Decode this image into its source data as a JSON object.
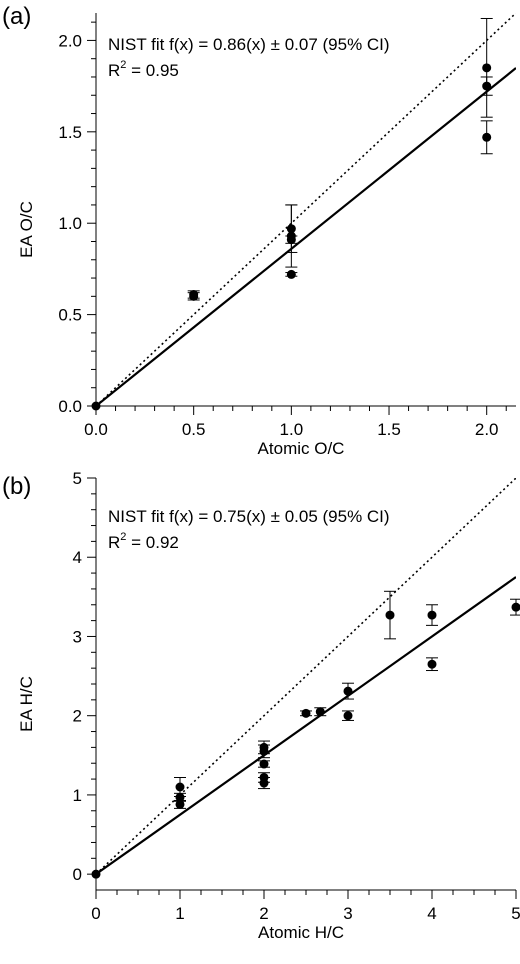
{
  "chart_data": [
    {
      "panel_label": "(a)",
      "type": "scatter",
      "xlabel": "Atomic O/C",
      "ylabel": "EA O/C",
      "xlim": [
        0,
        2.15
      ],
      "ylim": [
        0,
        2.15
      ],
      "x_ticks": [
        "0.0",
        "0.5",
        "1.0",
        "1.5",
        "2.0"
      ],
      "y_ticks": [
        "0.0",
        "0.5",
        "1.0",
        "1.5",
        "2.0"
      ],
      "annotation_fit": "NIST fit f(x) = 0.86(x) ± 0.07 (95% CI)",
      "annotation_r2_prefix": "R",
      "annotation_r2_exp": "2",
      "annotation_r2_suffix": " = 0.95",
      "fit_slope": 0.86,
      "identity_line": true,
      "points": [
        {
          "x": 0.0,
          "y": 0.0,
          "err": 0.0
        },
        {
          "x": 0.5,
          "y": 0.61,
          "err": 0.02
        },
        {
          "x": 0.5,
          "y": 0.6,
          "err": 0.02
        },
        {
          "x": 1.0,
          "y": 0.97,
          "err": 0.13
        },
        {
          "x": 1.0,
          "y": 0.93,
          "err": 0.17
        },
        {
          "x": 1.0,
          "y": 0.91,
          "err": 0.02
        },
        {
          "x": 1.0,
          "y": 0.72,
          "err": 0.01
        },
        {
          "x": 2.0,
          "y": 1.85,
          "err": 0.27
        },
        {
          "x": 2.0,
          "y": 1.75,
          "err": 0.05
        },
        {
          "x": 2.0,
          "y": 1.47,
          "err": 0.09
        }
      ]
    },
    {
      "panel_label": "(b)",
      "type": "scatter",
      "xlabel": "Atomic H/C",
      "ylabel": "EA H/C",
      "xlim": [
        0,
        5
      ],
      "ylim": [
        -0.2,
        5
      ],
      "x_ticks": [
        "0",
        "1",
        "2",
        "3",
        "4",
        "5"
      ],
      "y_ticks": [
        "0",
        "1",
        "2",
        "3",
        "4",
        "5"
      ],
      "annotation_fit": "NIST fit f(x) = 0.75(x) ± 0.05 (95% CI)",
      "annotation_r2_prefix": "R",
      "annotation_r2_exp": "2",
      "annotation_r2_suffix": " = 0.92",
      "fit_slope": 0.75,
      "identity_line": true,
      "points": [
        {
          "x": 0.0,
          "y": 0.0,
          "err": 0.0
        },
        {
          "x": 1.0,
          "y": 1.1,
          "err": 0.12
        },
        {
          "x": 1.0,
          "y": 0.97,
          "err": 0.05
        },
        {
          "x": 1.0,
          "y": 0.88,
          "err": 0.05
        },
        {
          "x": 2.0,
          "y": 1.6,
          "err": 0.08
        },
        {
          "x": 2.0,
          "y": 1.55,
          "err": 0.08
        },
        {
          "x": 2.0,
          "y": 1.39,
          "err": 0.04
        },
        {
          "x": 2.0,
          "y": 1.22,
          "err": 0.06
        },
        {
          "x": 2.0,
          "y": 1.15,
          "err": 0.07
        },
        {
          "x": 2.5,
          "y": 2.03,
          "err": 0.03
        },
        {
          "x": 2.67,
          "y": 2.05,
          "err": 0.05
        },
        {
          "x": 3.0,
          "y": 2.31,
          "err": 0.1
        },
        {
          "x": 3.0,
          "y": 2.0,
          "err": 0.06
        },
        {
          "x": 3.5,
          "y": 3.27,
          "err": 0.3
        },
        {
          "x": 4.0,
          "y": 3.27,
          "err": 0.13
        },
        {
          "x": 4.0,
          "y": 2.65,
          "err": 0.08
        },
        {
          "x": 5.0,
          "y": 3.37,
          "err": 0.1
        }
      ]
    }
  ]
}
